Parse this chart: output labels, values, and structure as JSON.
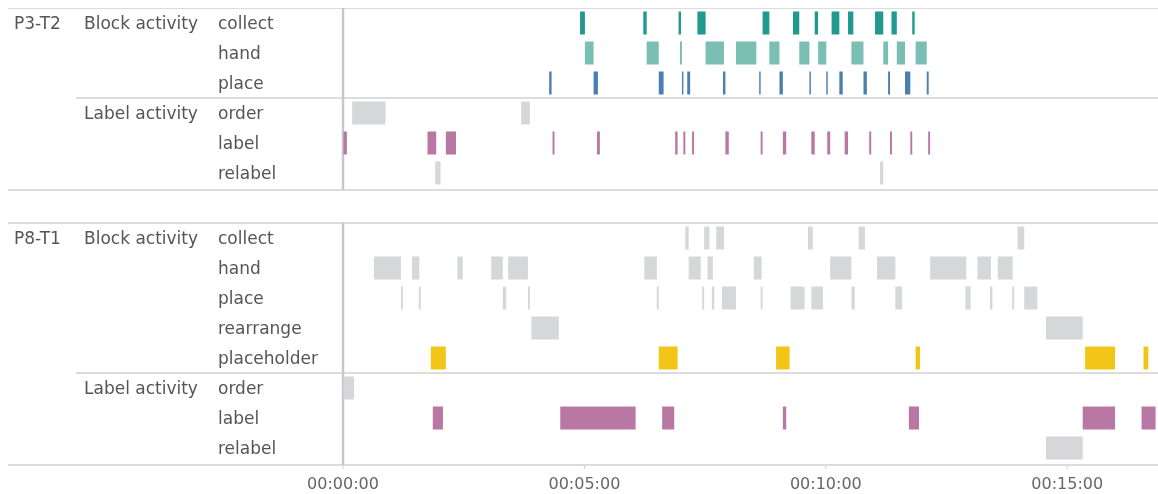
{
  "chart_data": [
    {
      "type": "bar",
      "orientation": "horizontal",
      "annotations": [
        "P3-T2"
      ],
      "ylabel": "Block activity",
      "tick_labels": "y",
      "xlim": [
        0,
        16.88
      ],
      "categories": [
        "collect",
        "hand",
        "place"
      ],
      "series": [
        {
          "base": [
            4.91,
            5.01,
            4.27
          ],
          "values": [
            0.1,
            0.18,
            0.05
          ],
          "colors": [
            "#21998e",
            "#7bbfb4",
            "#4a7fb0"
          ]
        },
        {
          "base": [
            6.22,
            6.29,
            5.19
          ],
          "values": [
            0.07,
            0.25,
            0.09
          ],
          "colors": [
            "#21998e",
            "#7bbfb4",
            "#4a7fb0"
          ]
        },
        {
          "base": [
            6.95,
            6.98,
            6.54
          ],
          "values": [
            0.05,
            0.04,
            0.1
          ],
          "colors": [
            "#21998e",
            "#7bbfb4",
            "#4a7fb0"
          ]
        },
        {
          "base": [
            7.34,
            7.51,
            7.02
          ],
          "values": [
            0.17,
            0.38,
            0.03
          ],
          "colors": [
            "#21998e",
            "#7bbfb4",
            "#4a7fb0"
          ]
        },
        {
          "base": [
            8.69,
            8.14,
            7.13
          ],
          "values": [
            0.14,
            0.42,
            0.06
          ],
          "colors": [
            "#21998e",
            "#7bbfb4",
            "#4a7fb0"
          ]
        },
        {
          "base": [
            9.32,
            8.83,
            7.87
          ],
          "values": [
            0.13,
            0.21,
            0.05
          ],
          "colors": [
            "#21998e",
            "#7bbfb4",
            "#4a7fb0"
          ]
        },
        {
          "base": [
            9.77,
            9.45,
            8.62
          ],
          "values": [
            0.07,
            0.21,
            0.03
          ],
          "colors": [
            "#21998e",
            "#7bbfb4",
            "#4a7fb0"
          ]
        },
        {
          "base": [
            10.12,
            9.84,
            9.04
          ],
          "values": [
            0.16,
            0.17,
            0.07
          ],
          "colors": [
            "#21998e",
            "#7bbfb4",
            "#4a7fb0"
          ]
        },
        {
          "base": [
            10.46,
            10.53,
            9.66
          ],
          "values": [
            0.11,
            0.25,
            0.03
          ],
          "colors": [
            "#21998e",
            "#7bbfb4",
            "#4a7fb0"
          ]
        },
        {
          "base": [
            11.02,
            11.19,
            10.01
          ],
          "values": [
            0.17,
            0.1,
            0.03
          ],
          "colors": [
            "#21998e",
            "#7bbfb4",
            "#4a7fb0"
          ]
        },
        {
          "base": [
            11.36,
            11.47,
            10.28
          ],
          "values": [
            0.11,
            0.17,
            0.07
          ],
          "colors": [
            "#21998e",
            "#7bbfb4",
            "#4a7fb0"
          ]
        },
        {
          "base": [
            11.79,
            11.86,
            10.78
          ],
          "values": [
            0.05,
            0.23,
            0.07
          ],
          "colors": [
            "#21998e",
            "#7bbfb4",
            "#4a7fb0"
          ]
        },
        {
          "base": [
            null,
            null,
            11.29
          ],
          "values": [
            null,
            null,
            0.04
          ],
          "color": "#4a7fb0"
        },
        {
          "base": [
            null,
            null,
            11.64
          ],
          "values": [
            null,
            null,
            0.11
          ],
          "color": "#4a7fb0"
        },
        {
          "base": [
            null,
            null,
            12.09
          ],
          "values": [
            null,
            null,
            0.04
          ],
          "color": "#4a7fb0"
        }
      ]
    },
    {
      "type": "bar",
      "orientation": "horizontal",
      "ylabel": "Label activity",
      "tick_labels": "y",
      "xlim": [
        0,
        16.88
      ],
      "categories": [
        "order",
        "label",
        "relabel"
      ],
      "series": [
        {
          "base": [
            0.19,
            0.01,
            1.91
          ],
          "values": [
            0.69,
            0.07,
            0.11
          ],
          "colors": [
            "#d6d7d9",
            "#b977a3",
            "#d6d7d9"
          ]
        },
        {
          "base": [
            3.69,
            1.75,
            11.12
          ],
          "values": [
            0.18,
            0.18,
            0.07
          ],
          "colors": [
            "#d6d7d9",
            "#b977a3",
            "#d6d7d9"
          ]
        },
        {
          "base": [
            null,
            2.13,
            null
          ],
          "values": [
            null,
            0.21,
            null
          ],
          "color": "#b977a3"
        },
        {
          "base": [
            null,
            4.34,
            null
          ],
          "values": [
            null,
            0.04,
            null
          ],
          "color": "#b977a3"
        },
        {
          "base": [
            null,
            5.26,
            null
          ],
          "values": [
            null,
            0.06,
            null
          ],
          "color": "#b977a3"
        },
        {
          "base": [
            null,
            6.88,
            null
          ],
          "values": [
            null,
            0.05,
            null
          ],
          "color": "#b977a3"
        },
        {
          "base": [
            null,
            7.05,
            null
          ],
          "values": [
            null,
            0.04,
            null
          ],
          "color": "#b977a3"
        },
        {
          "base": [
            null,
            7.23,
            null
          ],
          "values": [
            null,
            0.04,
            null
          ],
          "color": "#b977a3"
        },
        {
          "base": [
            null,
            7.92,
            null
          ],
          "values": [
            null,
            0.07,
            null
          ],
          "color": "#b977a3"
        },
        {
          "base": [
            null,
            8.65,
            null
          ],
          "values": [
            null,
            0.04,
            null
          ],
          "color": "#b977a3"
        },
        {
          "base": [
            null,
            9.11,
            null
          ],
          "values": [
            null,
            0.07,
            null
          ],
          "color": "#b977a3"
        },
        {
          "base": [
            null,
            9.7,
            null
          ],
          "values": [
            null,
            0.07,
            null
          ],
          "color": "#b977a3"
        },
        {
          "base": [
            null,
            10.03,
            null
          ],
          "values": [
            null,
            0.06,
            null
          ],
          "color": "#b977a3"
        },
        {
          "base": [
            null,
            10.39,
            null
          ],
          "values": [
            null,
            0.07,
            null
          ],
          "color": "#b977a3"
        },
        {
          "base": [
            null,
            10.9,
            null
          ],
          "values": [
            null,
            0.04,
            null
          ],
          "color": "#b977a3"
        },
        {
          "base": [
            null,
            11.33,
            null
          ],
          "values": [
            null,
            0.04,
            null
          ],
          "color": "#b977a3"
        },
        {
          "base": [
            null,
            11.75,
            null
          ],
          "values": [
            null,
            0.04,
            null
          ],
          "color": "#b977a3"
        },
        {
          "base": [
            null,
            12.12,
            null
          ],
          "values": [
            null,
            0.04,
            null
          ],
          "color": "#b977a3"
        }
      ]
    },
    {
      "type": "bar",
      "orientation": "horizontal",
      "annotations": [
        "P8-T1"
      ],
      "ylabel": "Block activity",
      "tick_labels": "y",
      "xlim": [
        0,
        16.88
      ],
      "categories": [
        "collect",
        "hand",
        "place",
        "rearrange",
        "placeholder"
      ],
      "series": [
        {
          "base": [
            7.09,
            0.64,
            1.2,
            3.9,
            1.82
          ],
          "values": [
            0.07,
            0.56,
            0.04,
            0.57,
            0.31
          ],
          "colors": [
            "#d6d7d9",
            "#d6d7d9",
            "#d6d7d9",
            "#d6d7d9",
            "#f1c619"
          ]
        },
        {
          "base": [
            7.48,
            1.43,
            1.57,
            14.56,
            6.54
          ],
          "values": [
            0.11,
            0.15,
            0.04,
            0.76,
            0.39
          ],
          "colors": [
            "#d6d7d9",
            "#d6d7d9",
            "#d6d7d9",
            "#d6d7d9",
            "#f1c619"
          ]
        },
        {
          "base": [
            7.73,
            2.37,
            3.31,
            null,
            8.97
          ],
          "values": [
            0.16,
            0.11,
            0.07,
            null,
            0.28
          ],
          "colors": [
            "#d6d7d9",
            "#d6d7d9",
            "#d6d7d9",
            null,
            "#f1c619"
          ]
        },
        {
          "base": [
            9.63,
            3.07,
            3.83,
            null,
            11.86
          ],
          "values": [
            0.1,
            0.24,
            0.04,
            null,
            0.09
          ],
          "colors": [
            "#d6d7d9",
            "#d6d7d9",
            "#d6d7d9",
            null,
            "#f1c619"
          ]
        },
        {
          "base": [
            10.68,
            3.42,
            6.5,
            null,
            15.37
          ],
          "values": [
            0.13,
            0.41,
            0.04,
            null,
            0.62
          ],
          "colors": [
            "#d6d7d9",
            "#d6d7d9",
            "#d6d7d9",
            null,
            "#f1c619"
          ]
        },
        {
          "base": [
            13.97,
            6.24,
            7.44,
            null,
            16.58
          ],
          "values": [
            0.14,
            0.26,
            0.04,
            null,
            0.1
          ],
          "colors": [
            "#d6d7d9",
            "#d6d7d9",
            "#d6d7d9",
            null,
            "#f1c619"
          ]
        },
        {
          "base": [
            null,
            7.16,
            7.64,
            null,
            null
          ],
          "values": [
            null,
            0.25,
            0.05,
            null,
            null
          ],
          "color": "#d6d7d9"
        },
        {
          "base": [
            null,
            7.55,
            7.85,
            null,
            null
          ],
          "values": [
            null,
            0.11,
            0.29,
            null,
            null
          ],
          "color": "#d6d7d9"
        },
        {
          "base": [
            null,
            8.51,
            8.65,
            null,
            null
          ],
          "values": [
            null,
            0.16,
            0.04,
            null,
            null
          ],
          "color": "#d6d7d9"
        },
        {
          "base": [
            null,
            10.09,
            9.27,
            null,
            null
          ],
          "values": [
            null,
            0.44,
            0.29,
            null,
            null
          ],
          "color": "#d6d7d9"
        },
        {
          "base": [
            null,
            11.06,
            9.7,
            null,
            null
          ],
          "values": [
            null,
            0.38,
            0.24,
            null,
            null
          ],
          "color": "#d6d7d9"
        },
        {
          "base": [
            null,
            12.16,
            10.53,
            null,
            null
          ],
          "values": [
            null,
            0.75,
            0.07,
            null,
            null
          ],
          "color": "#d6d7d9"
        },
        {
          "base": [
            null,
            13.14,
            11.44,
            null,
            null
          ],
          "values": [
            null,
            0.28,
            0.14,
            null,
            null
          ],
          "color": "#d6d7d9"
        },
        {
          "base": [
            null,
            13.56,
            12.89,
            null,
            null
          ],
          "values": [
            null,
            0.31,
            0.11,
            null,
            null
          ],
          "color": "#d6d7d9"
        },
        {
          "base": [
            null,
            null,
            13.4,
            null,
            null
          ],
          "values": [
            null,
            null,
            0.05,
            null,
            null
          ],
          "color": "#d6d7d9"
        },
        {
          "base": [
            null,
            null,
            13.86,
            null,
            null
          ],
          "values": [
            null,
            null,
            0.04,
            null,
            null
          ],
          "color": "#d6d7d9"
        },
        {
          "base": [
            null,
            null,
            14.11,
            null,
            null
          ],
          "values": [
            null,
            null,
            0.27,
            null,
            null
          ],
          "color": "#d6d7d9"
        }
      ]
    },
    {
      "type": "bar",
      "orientation": "horizontal",
      "ylabel": "Label activity",
      "xlim": [
        0,
        16.88
      ],
      "xticks": [
        {
          "value": 0,
          "label": "00:00:00"
        },
        {
          "value": 5,
          "label": "00:05:00"
        },
        {
          "value": 10,
          "label": "00:10:00"
        },
        {
          "value": 15,
          "label": "00:15:00"
        }
      ],
      "categories": [
        "order",
        "label",
        "relabel"
      ],
      "series": [
        {
          "base": [
            0.01,
            1.86,
            14.56
          ],
          "values": [
            0.22,
            0.21,
            0.76
          ],
          "colors": [
            "#d6d7d9",
            "#b977a3",
            "#d6d7d9"
          ]
        },
        {
          "base": [
            null,
            4.5,
            null
          ],
          "values": [
            null,
            1.56,
            null
          ],
          "color": "#b977a3"
        },
        {
          "base": [
            null,
            6.61,
            null
          ],
          "values": [
            null,
            0.25,
            null
          ],
          "color": "#b977a3"
        },
        {
          "base": [
            null,
            9.11,
            null
          ],
          "values": [
            null,
            0.07,
            null
          ],
          "color": "#b977a3"
        },
        {
          "base": [
            null,
            11.72,
            null
          ],
          "values": [
            null,
            0.21,
            null
          ],
          "color": "#b977a3"
        },
        {
          "base": [
            null,
            15.32,
            null
          ],
          "values": [
            null,
            0.67,
            null
          ],
          "color": "#b977a3"
        },
        {
          "base": [
            null,
            16.54,
            null
          ],
          "values": [
            null,
            0.29,
            null
          ],
          "color": "#b977a3"
        }
      ]
    }
  ]
}
